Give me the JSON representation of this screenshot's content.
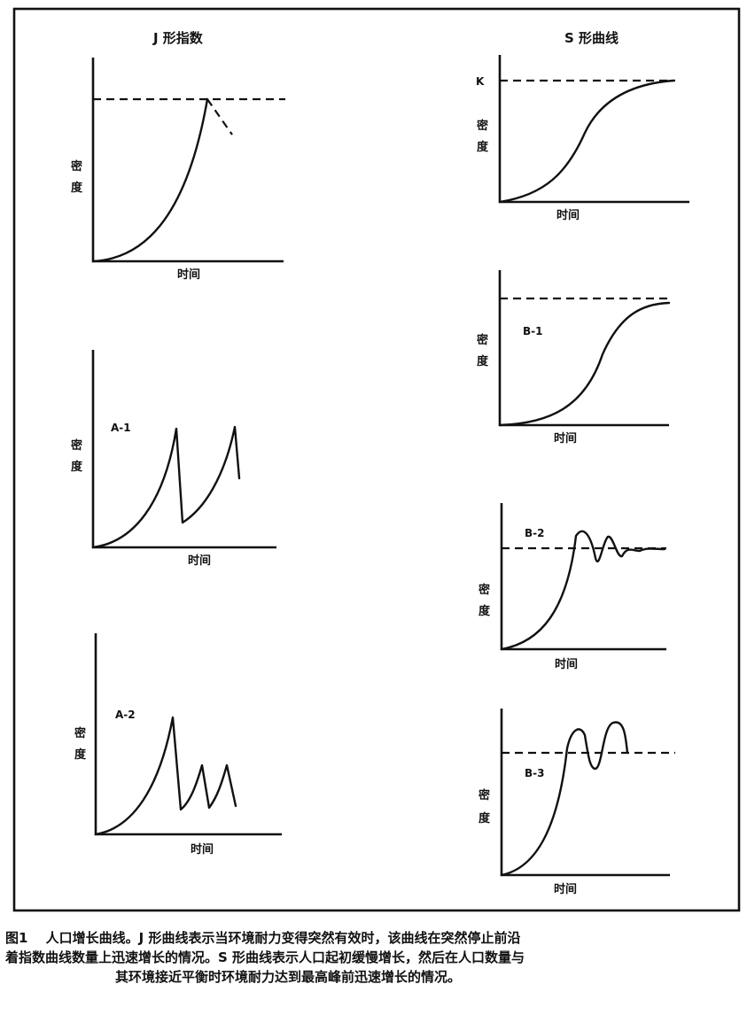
{
  "headers": {
    "j": "J 形指数",
    "s": "S 形曲线"
  },
  "axis": {
    "density_top": "密",
    "density_bottom": "度",
    "time": "时间"
  },
  "labels": {
    "k": "K",
    "a1": "A-1",
    "a2": "A-2",
    "b1": "B-1",
    "b2": "B-2",
    "b3": "B-3"
  },
  "caption": {
    "line1": "图1　 人口增长曲线。J 形曲线表示当环境耐力变得突然有效时，该曲线在突然停止前沿",
    "line2": "着指数曲线数量上迅速增长的情况。S 形曲线表示人口起初缓慢增长，然后在人口数量与",
    "line3": "其环境接近平衡时环境耐力达到最高峰前迅速增长的情况。"
  }
}
